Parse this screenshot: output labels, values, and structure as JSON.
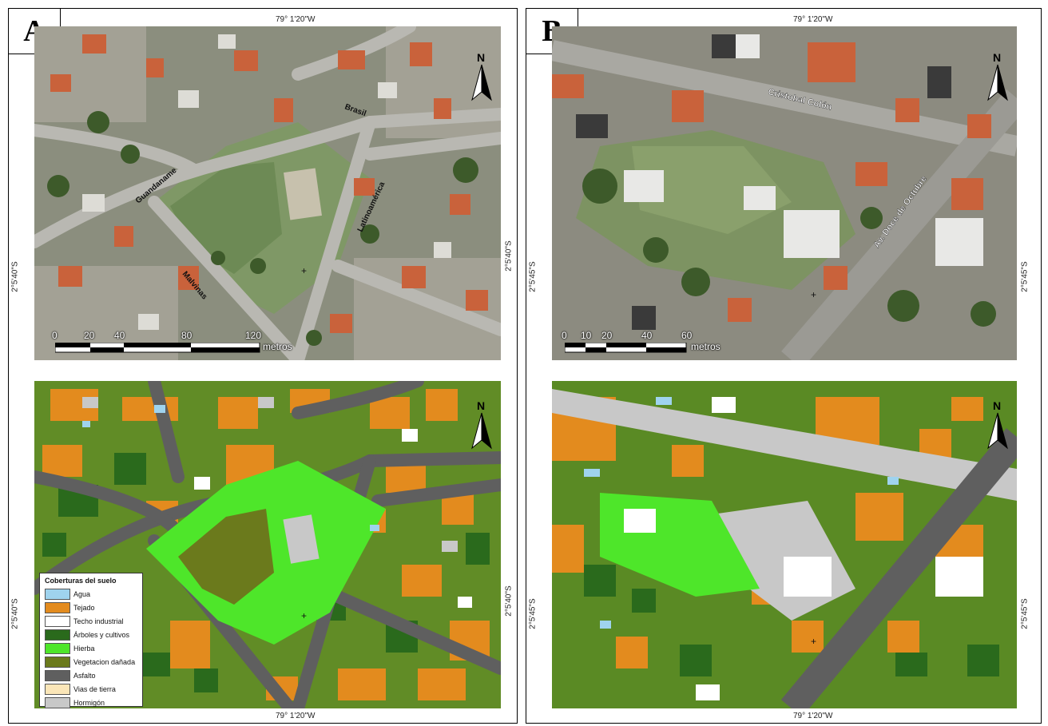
{
  "panels": [
    {
      "label": "A",
      "coords": {
        "top": "79° 1'20\"W",
        "bottom": "79° 1'20\"W",
        "left": "2°5'40\"S",
        "right": "2°5'40\"S"
      },
      "streets": [
        "Brasil",
        "Guandaname",
        "Latinoamérica",
        "Malvinas"
      ],
      "scale": {
        "ticks": [
          "0",
          "20",
          "40",
          "80",
          "120"
        ],
        "unit": "metros"
      },
      "north_label": "N"
    },
    {
      "label": "B",
      "coords": {
        "top": "79° 1'20\"W",
        "bottom": "79° 1'20\"W",
        "left": "2°5'45\"S",
        "right": "2°5'45\"S"
      },
      "streets": [
        "Cristobal Colón",
        "Av. Doce de Octubre"
      ],
      "scale": {
        "ticks": [
          "0",
          "10",
          "20",
          "40",
          "60"
        ],
        "unit": "metros"
      },
      "north_label": "N"
    }
  ],
  "legend": {
    "title": "Coberturas del suelo",
    "items": [
      {
        "label": "Agua",
        "color": "#9fd3ee"
      },
      {
        "label": "Tejado",
        "color": "#e38b1e"
      },
      {
        "label": "Techo industrial",
        "color": "#ffffff"
      },
      {
        "label": "Árboles y cultivos",
        "color": "#2a6a1c"
      },
      {
        "label": "Hierba",
        "color": "#4ee62a"
      },
      {
        "label": "Vegetacion dañada",
        "color": "#6b7a1c"
      },
      {
        "label": "Asfalto",
        "color": "#5f5f5f"
      },
      {
        "label": "Vias de tierra",
        "color": "#fbe6b8"
      },
      {
        "label": "Hormigón",
        "color": "#c8c8c8"
      }
    ]
  },
  "colors": {
    "aerial_base": "#8a8f7c",
    "aerial_road": "#9c9c98",
    "aerial_field": "#7a9460"
  }
}
